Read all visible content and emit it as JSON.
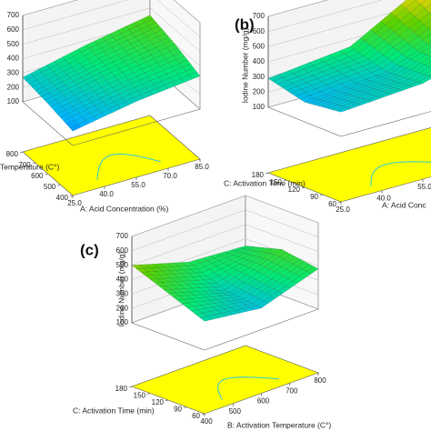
{
  "chart_data": [
    {
      "type": "surface3d",
      "x_label": "A: Acid Concentration (%)",
      "y_label": "Temperature (C°)",
      "xlim": [
        25,
        85
      ],
      "xticks": [
        {
          "value": 25,
          "label": "25.0"
        },
        {
          "value": 40,
          "label": "40.0"
        },
        {
          "value": 55,
          "label": "55.0"
        },
        {
          "value": 70,
          "label": "70.0"
        },
        {
          "value": 85,
          "label": "85.0"
        }
      ],
      "ylim": [
        400,
        800
      ],
      "yticks": [
        400,
        500,
        600,
        700,
        800
      ],
      "zlim": [
        100,
        700
      ],
      "zticks": [
        100,
        200,
        300,
        400,
        500,
        600,
        700
      ],
      "z": [
        [
          200,
          280,
          330
        ],
        [
          240,
          330,
          400
        ],
        [
          270,
          370,
          450
        ]
      ],
      "colormap": [
        "#0000ff",
        "#00b4ff",
        "#00e878",
        "#5ad200",
        "#e6d200",
        "#ff6000"
      ],
      "floor_color": "#ffff00"
    },
    {
      "type": "surface3d",
      "panel_label": "(b)",
      "z_label": "Iodine Number (mg/g)",
      "x_label": "A: Acid Conc",
      "y_label": "C: Activation Time (min)",
      "xlim": [
        25,
        85
      ],
      "xticks": [
        {
          "value": 25,
          "label": "25.0"
        },
        {
          "value": 40,
          "label": "40.0"
        },
        {
          "value": 55,
          "label": "55.0"
        }
      ],
      "ylim": [
        60,
        180
      ],
      "yticks": [
        60,
        90,
        120,
        150,
        180
      ],
      "zlim": [
        100,
        700
      ],
      "zticks": [
        100,
        200,
        300,
        400,
        500,
        600,
        700
      ],
      "z": [
        [
          260,
          300,
          450
        ],
        [
          230,
          280,
          500
        ],
        [
          290,
          350,
          650
        ]
      ],
      "colormap": [
        "#0000ff",
        "#00b4ff",
        "#00e878",
        "#5ad200",
        "#e6d200",
        "#ff6000"
      ],
      "floor_color": "#ffff00"
    },
    {
      "type": "surface3d",
      "panel_label": "(c)",
      "z_label": "Iodine Number (mg/g)",
      "x_label": "B: Activation Temperature (C°)",
      "y_label": "C: Activation Time (min)",
      "xlim": [
        400,
        800
      ],
      "xticks": [
        400,
        500,
        600,
        700,
        800
      ],
      "ylim": [
        60,
        180
      ],
      "yticks": [
        60,
        90,
        120,
        150,
        180
      ],
      "zlim": [
        100,
        700
      ],
      "zticks": [
        100,
        200,
        300,
        400,
        500,
        600,
        700
      ],
      "z": [
        [
          300,
          250,
          380
        ],
        [
          400,
          280,
          420
        ],
        [
          500,
          380,
          350
        ]
      ],
      "colormap": [
        "#0000ff",
        "#00b4ff",
        "#00e878",
        "#5ad200",
        "#e6d200",
        "#ff6000"
      ],
      "floor_color": "#ffff00"
    }
  ]
}
